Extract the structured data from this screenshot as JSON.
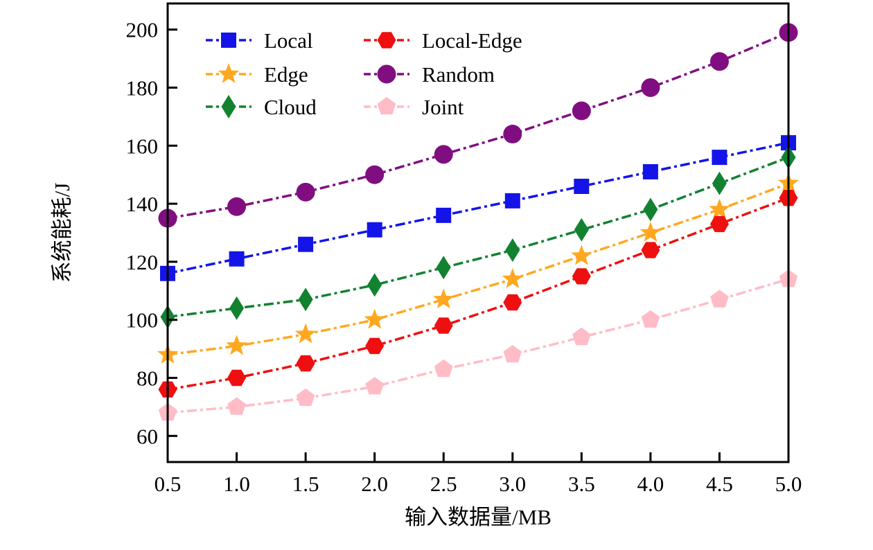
{
  "figure": {
    "background": "#ffffff",
    "frame_color": "#000000"
  },
  "chart_data": {
    "type": "line",
    "title": "",
    "xlabel": "输入数据量/MB",
    "ylabel": "系统能耗/J",
    "x": [
      0.5,
      1.0,
      1.5,
      2.0,
      2.5,
      3.0,
      3.5,
      4.0,
      4.5,
      5.0
    ],
    "xtick_labels": [
      "0.5",
      "1.0",
      "1.5",
      "2.0",
      "2.5",
      "3.0",
      "3.5",
      "4.0",
      "4.5",
      "5.0"
    ],
    "yticks": [
      60,
      80,
      100,
      120,
      140,
      160,
      180,
      200
    ],
    "ytick_labels": [
      "60",
      "80",
      "100",
      "120",
      "140",
      "160",
      "180",
      "200"
    ],
    "xlim": [
      0.5,
      5.0
    ],
    "ylim": [
      51,
      209
    ],
    "grid": false,
    "line_style": "dash-dot",
    "legend_position": "upper-left-two-columns",
    "series": [
      {
        "name": "Local",
        "marker": "square",
        "color": "#1414e8",
        "values": [
          116,
          121,
          126,
          131,
          136,
          141,
          146,
          151,
          156,
          161
        ]
      },
      {
        "name": "Edge",
        "marker": "star",
        "color": "#ffa81f",
        "values": [
          88,
          91,
          95,
          100,
          107,
          114,
          122,
          130,
          138,
          147
        ]
      },
      {
        "name": "Cloud",
        "marker": "diamond",
        "color": "#128230",
        "values": [
          101,
          104,
          107,
          112,
          118,
          124,
          131,
          138,
          147,
          156
        ]
      },
      {
        "name": "Local-Edge",
        "marker": "hexagon",
        "color": "#ee1010",
        "values": [
          76,
          80,
          85,
          91,
          98,
          106,
          115,
          124,
          133,
          142
        ]
      },
      {
        "name": "Random",
        "marker": "circle",
        "color": "#810e81",
        "values": [
          135,
          139,
          144,
          150,
          157,
          164,
          172,
          180,
          189,
          199
        ]
      },
      {
        "name": "Joint",
        "marker": "pentagon",
        "color": "#ffbcc6",
        "values": [
          68,
          70,
          73,
          77,
          83,
          88,
          94,
          100,
          107,
          114
        ]
      }
    ]
  }
}
